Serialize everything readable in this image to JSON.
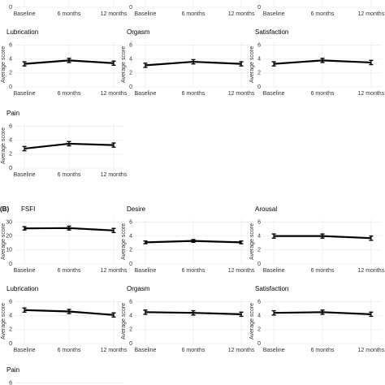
{
  "chart_data": [
    {
      "type": "line",
      "categories": [
        "Baseline",
        "6 months",
        "12 months"
      ],
      "ylim": [
        0,
        6.4
      ],
      "yticks": [
        0
      ]
    },
    {
      "type": "line",
      "categories": [
        "Baseline",
        "6 months",
        "12 months"
      ],
      "ylim": [
        0,
        6.4
      ],
      "yticks": [
        0
      ]
    },
    {
      "type": "line",
      "categories": [
        "Baseline",
        "6 months",
        "12 months"
      ],
      "ylim": [
        0,
        6.4
      ],
      "yticks": [
        0
      ]
    },
    {
      "type": "line",
      "title": "Lubrication",
      "ylabel": "Average score",
      "categories": [
        "Baseline",
        "6 months",
        "12 months"
      ],
      "ylim": [
        0,
        6.4
      ],
      "yticks": [
        0,
        2,
        4,
        6
      ],
      "values": [
        3.3,
        3.8,
        3.4
      ],
      "errors": [
        0.3,
        0.3,
        0.3
      ],
      "color": "#000000"
    },
    {
      "type": "line",
      "title": "Orgasm",
      "ylabel": "Average score",
      "categories": [
        "Baseline",
        "6 months",
        "12 months"
      ],
      "ylim": [
        0,
        6.4
      ],
      "yticks": [
        0,
        2,
        4,
        6
      ],
      "values": [
        3.1,
        3.6,
        3.3
      ],
      "errors": [
        0.3,
        0.3,
        0.3
      ],
      "color": "#000000"
    },
    {
      "type": "line",
      "title": "Satisfaction",
      "ylabel": "Average score",
      "categories": [
        "Baseline",
        "6 months",
        "12 months"
      ],
      "ylim": [
        0,
        6.4
      ],
      "yticks": [
        0,
        2,
        4,
        6
      ],
      "values": [
        3.3,
        3.8,
        3.5
      ],
      "errors": [
        0.3,
        0.3,
        0.3
      ],
      "color": "#000000"
    },
    {
      "type": "line",
      "title": "Pain",
      "ylabel": "Average score",
      "categories": [
        "Baseline",
        "6 months",
        "12 months"
      ],
      "ylim": [
        0,
        6.4
      ],
      "yticks": [
        0,
        2,
        4,
        6
      ],
      "values": [
        2.8,
        3.5,
        3.3
      ],
      "errors": [
        0.3,
        0.3,
        0.3
      ],
      "color": "#000000"
    },
    {
      "type": "line",
      "panel_label": "(B)",
      "title": "FSFI",
      "ylabel": "Average score",
      "categories": [
        "Baseline",
        "6 months",
        "12 months"
      ],
      "ylim": [
        0,
        32
      ],
      "yticks": [
        0,
        10,
        20,
        30
      ],
      "values": [
        25.5,
        25.7,
        24
      ],
      "errors": [
        1.2,
        1.4,
        1.5
      ],
      "color": "#000000"
    },
    {
      "type": "line",
      "title": "Desire",
      "ylabel": "Average score",
      "categories": [
        "Baseline",
        "6 months",
        "12 months"
      ],
      "ylim": [
        0,
        6.4
      ],
      "yticks": [
        0,
        2,
        4,
        6
      ],
      "values": [
        3.1,
        3.3,
        3.1
      ],
      "errors": [
        0.2,
        0.2,
        0.2
      ],
      "color": "#000000"
    },
    {
      "type": "line",
      "title": "Arousal",
      "ylabel": "Average score",
      "categories": [
        "Baseline",
        "6 months",
        "12 months"
      ],
      "ylim": [
        0,
        6.4
      ],
      "yticks": [
        0,
        2,
        4,
        6
      ],
      "values": [
        4.0,
        4.0,
        3.7
      ],
      "errors": [
        0.3,
        0.3,
        0.3
      ],
      "color": "#000000"
    },
    {
      "type": "line",
      "title": "Lubrication",
      "ylabel": "Average score",
      "categories": [
        "Baseline",
        "6 months",
        "12 months"
      ],
      "ylim": [
        0,
        6.4
      ],
      "yticks": [
        0,
        2,
        4,
        6
      ],
      "values": [
        4.8,
        4.6,
        4.1
      ],
      "errors": [
        0.3,
        0.3,
        0.3
      ],
      "color": "#000000"
    },
    {
      "type": "line",
      "title": "Orgasm",
      "ylabel": "Average score",
      "categories": [
        "Baseline",
        "6 months",
        "12 months"
      ],
      "ylim": [
        0,
        6.4
      ],
      "yticks": [
        0,
        2,
        4,
        6
      ],
      "values": [
        4.5,
        4.4,
        4.2
      ],
      "errors": [
        0.3,
        0.3,
        0.3
      ],
      "color": "#000000"
    },
    {
      "type": "line",
      "title": "Satisfaction",
      "ylabel": "Average score",
      "categories": [
        "Baseline",
        "6 months",
        "12 months"
      ],
      "ylim": [
        0,
        6.4
      ],
      "yticks": [
        0,
        2,
        4,
        6
      ],
      "values": [
        4.4,
        4.5,
        4.2
      ],
      "errors": [
        0.3,
        0.3,
        0.3
      ],
      "color": "#000000"
    },
    {
      "type": "line",
      "title": "Pain",
      "ylim": [
        0,
        6.4
      ],
      "yticks": [
        6
      ]
    }
  ]
}
